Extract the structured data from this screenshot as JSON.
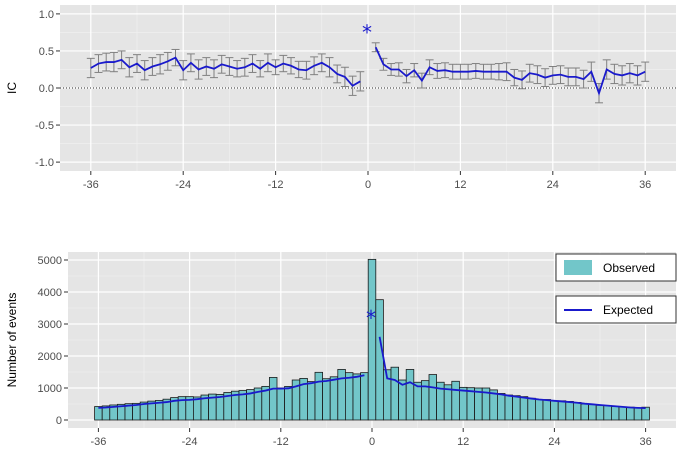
{
  "chart_data": [
    {
      "type": "line",
      "ylabel": "IC",
      "xlabel": "",
      "xlim": [
        -40,
        40
      ],
      "ylim": [
        -1.12,
        1.12
      ],
      "xticks": [
        -36,
        -24,
        -12,
        0,
        12,
        24,
        36
      ],
      "xtick_labels": [
        "-36",
        "-24",
        "-12",
        "0",
        "12",
        "24",
        "36"
      ],
      "yticks": [
        -1.0,
        -0.5,
        0.0,
        0.5,
        1.0
      ],
      "ytick_labels": [
        "-1.0",
        "-0.5",
        "0.0",
        "0.5",
        "1.0"
      ],
      "reference_line": {
        "y": 0.0,
        "style": "dotted"
      },
      "grid": true,
      "annotation": {
        "text": "*",
        "x": 0,
        "y": 0.28
      },
      "colors": {
        "line": "#1a1acc",
        "errorbar": "#808080",
        "panel": "#e5e5e5",
        "grid": "#ffffff"
      },
      "series": [
        {
          "segment": "before",
          "x": [
            -36,
            -35,
            -34,
            -33,
            -32,
            -31,
            -30,
            -29,
            -28,
            -27,
            -26,
            -25,
            -24,
            -23,
            -22,
            -21,
            -20,
            -19,
            -18,
            -17,
            -16,
            -15,
            -14,
            -13,
            -12,
            -11,
            -10,
            -9,
            -8,
            -7,
            -6,
            -5,
            -4,
            -3,
            -2,
            -1
          ],
          "y": [
            0.27,
            0.33,
            0.35,
            0.35,
            0.38,
            0.28,
            0.33,
            0.24,
            0.29,
            0.32,
            0.36,
            0.41,
            0.24,
            0.34,
            0.25,
            0.29,
            0.26,
            0.32,
            0.29,
            0.26,
            0.28,
            0.33,
            0.26,
            0.34,
            0.28,
            0.33,
            0.3,
            0.25,
            0.24,
            0.3,
            0.34,
            0.28,
            0.19,
            0.15,
            0.03,
            0.09
          ],
          "err": [
            0.13,
            0.12,
            0.12,
            0.13,
            0.12,
            0.13,
            0.12,
            0.13,
            0.12,
            0.13,
            0.12,
            0.11,
            0.13,
            0.12,
            0.13,
            0.12,
            0.12,
            0.12,
            0.12,
            0.11,
            0.12,
            0.12,
            0.11,
            0.12,
            0.1,
            0.11,
            0.11,
            0.11,
            0.12,
            0.12,
            0.12,
            0.13,
            0.12,
            0.13,
            0.13,
            0.13
          ]
        },
        {
          "segment": "after",
          "x": [
            1,
            2,
            3,
            4,
            5,
            6,
            7,
            8,
            9,
            10,
            11,
            12,
            13,
            14,
            15,
            16,
            17,
            18,
            19,
            20,
            21,
            22,
            23,
            24,
            25,
            26,
            27,
            28,
            29,
            30,
            31,
            32,
            33,
            34,
            35,
            36
          ],
          "y": [
            0.55,
            0.32,
            0.25,
            0.25,
            0.16,
            0.24,
            0.1,
            0.28,
            0.23,
            0.24,
            0.22,
            0.22,
            0.22,
            0.23,
            0.22,
            0.22,
            0.22,
            0.22,
            0.14,
            0.11,
            0.2,
            0.18,
            0.14,
            0.17,
            0.18,
            0.15,
            0.15,
            0.12,
            0.22,
            -0.07,
            0.25,
            0.19,
            0.17,
            0.2,
            0.17,
            0.22
          ],
          "err": [
            0.06,
            0.08,
            0.08,
            0.09,
            0.09,
            0.09,
            0.1,
            0.1,
            0.1,
            0.1,
            0.1,
            0.1,
            0.1,
            0.1,
            0.1,
            0.1,
            0.11,
            0.12,
            0.11,
            0.12,
            0.12,
            0.12,
            0.12,
            0.12,
            0.12,
            0.12,
            0.12,
            0.12,
            0.13,
            0.13,
            0.13,
            0.13,
            0.13,
            0.13,
            0.13,
            0.13
          ]
        }
      ]
    },
    {
      "type": "bar",
      "ylabel": "Number of events",
      "xlabel": "",
      "xlim": [
        -40,
        40
      ],
      "ylim": [
        -250,
        5250
      ],
      "xticks": [
        -36,
        -24,
        -12,
        0,
        12,
        24,
        36
      ],
      "xtick_labels": [
        "-36",
        "-24",
        "-12",
        "0",
        "12",
        "24",
        "36"
      ],
      "yticks": [
        0,
        1000,
        2000,
        3000,
        4000,
        5000
      ],
      "ytick_labels": [
        "0",
        "1000",
        "2000",
        "3000",
        "4000",
        "5000"
      ],
      "grid": true,
      "annotation": {
        "text": "*",
        "x": 0,
        "y": 3350
      },
      "legend": {
        "position": "right",
        "entries": [
          "Observed",
          "Expected"
        ]
      },
      "colors": {
        "bar": "#72c6c9",
        "bar_edge": "#1a1a1a",
        "expected": "#1a1acc",
        "panel": "#e5e5e5",
        "grid": "#ffffff"
      },
      "series": [
        {
          "name": "Observed",
          "x": [
            -36,
            -35,
            -34,
            -33,
            -32,
            -31,
            -30,
            -29,
            -28,
            -27,
            -26,
            -25,
            -24,
            -23,
            -22,
            -21,
            -20,
            -19,
            -18,
            -17,
            -16,
            -15,
            -14,
            -13,
            -12,
            -11,
            -10,
            -9,
            -8,
            -7,
            -6,
            -5,
            -4,
            -3,
            -2,
            -1,
            0,
            1,
            2,
            3,
            4,
            5,
            6,
            7,
            8,
            9,
            10,
            11,
            12,
            13,
            14,
            15,
            16,
            17,
            18,
            19,
            20,
            21,
            22,
            23,
            24,
            25,
            26,
            27,
            28,
            29,
            30,
            31,
            32,
            33,
            34,
            35,
            36
          ],
          "values": [
            420,
            440,
            470,
            490,
            510,
            520,
            560,
            590,
            610,
            650,
            700,
            730,
            730,
            720,
            780,
            810,
            800,
            860,
            900,
            920,
            950,
            1000,
            1050,
            1330,
            1000,
            1050,
            1250,
            1300,
            1200,
            1490,
            1290,
            1350,
            1580,
            1480,
            1440,
            1480,
            5020,
            3760,
            1570,
            1650,
            1250,
            1580,
            1180,
            1230,
            1420,
            1180,
            1100,
            1210,
            1020,
            1010,
            1000,
            1000,
            940,
            830,
            780,
            760,
            730,
            680,
            640,
            640,
            600,
            600,
            580,
            550,
            500,
            480,
            460,
            450,
            420,
            410,
            400,
            380,
            400
          ]
        },
        {
          "name": "Expected",
          "x": [
            -36,
            -35,
            -34,
            -33,
            -32,
            -31,
            -30,
            -29,
            -28,
            -27,
            -26,
            -25,
            -24,
            -23,
            -22,
            -21,
            -20,
            -19,
            -18,
            -17,
            -16,
            -15,
            -14,
            -13,
            -12,
            -11,
            -10,
            -9,
            -8,
            -7,
            -6,
            -5,
            -4,
            -3,
            -2,
            -1,
            0,
            1,
            2,
            3,
            4,
            5,
            6,
            7,
            8,
            9,
            10,
            11,
            12,
            13,
            14,
            15,
            16,
            17,
            18,
            19,
            20,
            21,
            22,
            23,
            24,
            25,
            26,
            27,
            28,
            29,
            30,
            31,
            32,
            33,
            34,
            35,
            36
          ],
          "values": [
            380,
            390,
            410,
            430,
            450,
            470,
            500,
            520,
            540,
            560,
            600,
            620,
            630,
            650,
            680,
            700,
            720,
            750,
            780,
            800,
            830,
            880,
            920,
            980,
            980,
            990,
            1050,
            1120,
            1150,
            1200,
            1220,
            1260,
            1300,
            1320,
            1350,
            1400,
            null,
            2600,
            1300,
            1250,
            1100,
            1180,
            1050,
            1050,
            1020,
            980,
            960,
            940,
            920,
            900,
            880,
            860,
            830,
            800,
            760,
            730,
            700,
            670,
            640,
            620,
            600,
            580,
            560,
            540,
            510,
            490,
            470,
            450,
            430,
            410,
            390,
            380,
            370
          ]
        }
      ]
    }
  ]
}
